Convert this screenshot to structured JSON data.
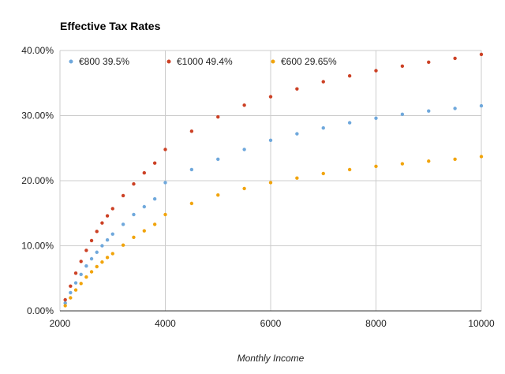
{
  "chart_data": {
    "type": "scatter",
    "title": "Effective Tax Rates",
    "xlabel": "Monthly Income",
    "ylabel": "",
    "xlim": [
      2000,
      10000
    ],
    "ylim": [
      0,
      0.4
    ],
    "xticks": [
      2000,
      4000,
      6000,
      8000,
      10000
    ],
    "xtick_labels": [
      "2000",
      "4000",
      "6000",
      "8000",
      "10000"
    ],
    "yticks": [
      0,
      0.1,
      0.2,
      0.3,
      0.4
    ],
    "ytick_labels": [
      "0.00%",
      "10.00%",
      "20.00%",
      "30.00%",
      "40.00%"
    ],
    "grid": true,
    "legend_position": "top-left inside",
    "x": [
      2100,
      2200,
      2300,
      2400,
      2500,
      2600,
      2700,
      2800,
      2900,
      3000,
      3200,
      3400,
      3600,
      3800,
      4000,
      4500,
      5000,
      5500,
      6000,
      6500,
      7000,
      7500,
      8000,
      8500,
      9000,
      9500,
      10000
    ],
    "series": [
      {
        "name": "€800 39.5%",
        "color": "#6fa8dc",
        "values": [
          0.012,
          0.028,
          0.043,
          0.056,
          0.069,
          0.08,
          0.09,
          0.1,
          0.109,
          0.118,
          0.133,
          0.148,
          0.16,
          0.172,
          0.197,
          0.217,
          0.233,
          0.248,
          0.262,
          0.272,
          0.281,
          0.289,
          0.296,
          0.302,
          0.307,
          0.311,
          0.315
        ]
      },
      {
        "name": "€1000 49.4%",
        "color": "#cc4125",
        "values": [
          0.017,
          0.038,
          0.058,
          0.076,
          0.093,
          0.108,
          0.122,
          0.135,
          0.146,
          0.157,
          0.177,
          0.195,
          0.212,
          0.227,
          0.248,
          0.276,
          0.298,
          0.316,
          0.329,
          0.341,
          0.352,
          0.361,
          0.369,
          0.376,
          0.382,
          0.388,
          0.394
        ]
      },
      {
        "name": "€600 29.65%",
        "color": "#f1a40c",
        "values": [
          0.008,
          0.02,
          0.032,
          0.042,
          0.052,
          0.06,
          0.068,
          0.075,
          0.082,
          0.088,
          0.101,
          0.113,
          0.123,
          0.133,
          0.148,
          0.165,
          0.178,
          0.188,
          0.197,
          0.204,
          0.211,
          0.217,
          0.222,
          0.226,
          0.23,
          0.233,
          0.237
        ]
      }
    ]
  }
}
